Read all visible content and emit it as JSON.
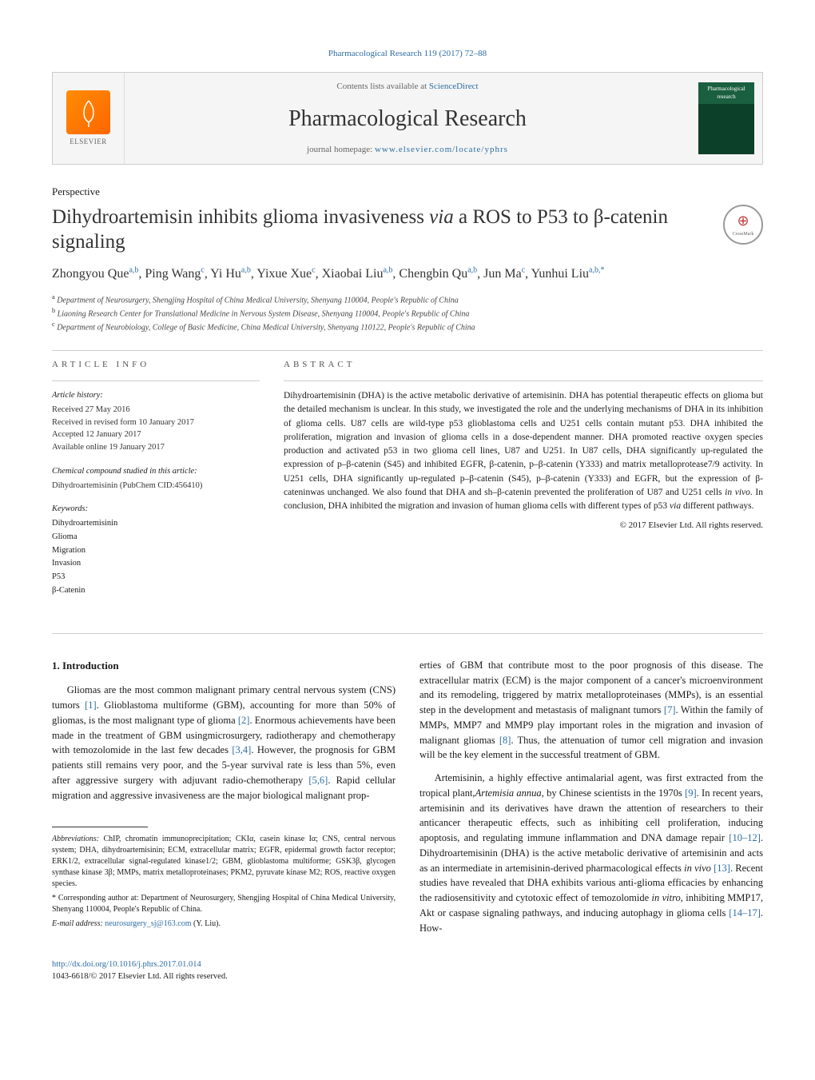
{
  "running_header": "Pharmacological Research 119 (2017) 72–88",
  "header": {
    "contents_prefix": "Contents lists available at ",
    "contents_link": "ScienceDirect",
    "journal_name": "Pharmacological Research",
    "homepage_prefix": "journal homepage: ",
    "homepage_url": "www.elsevier.com/locate/yphrs",
    "publisher_logo_label": "ELSEVIER",
    "cover_label": "Pharmacological research"
  },
  "article_type": "Perspective",
  "title_parts": {
    "p1": "Dihydroartemisin inhibits glioma invasiveness ",
    "via": "via",
    "p2": " a ROS to P53 to β-catenin signaling"
  },
  "crossmark": "CrossMark",
  "authors_html": "Zhongyou Que<sup>a,b</sup>, Ping Wang<sup>c</sup>, Yi Hu<sup>a,b</sup>, Yixue Xue<sup>c</sup>, Xiaobai Liu<sup>a,b</sup>, Chengbin Qu<sup>a,b</sup>, Jun Ma<sup>c</sup>, Yunhui Liu<sup>a,b,*</sup>",
  "affiliations": [
    {
      "marker": "a",
      "text": "Department of Neurosurgery, Shengjing Hospital of China Medical University, Shenyang 110004, People's Republic of China"
    },
    {
      "marker": "b",
      "text": "Liaoning Research Center for Translational Medicine in Nervous System Disease, Shenyang 110004, People's Republic of China"
    },
    {
      "marker": "c",
      "text": "Department of Neurobiology, College of Basic Medicine, China Medical University, Shenyang 110122, People's Republic of China"
    }
  ],
  "info": {
    "article_info_heading": "ARTICLE INFO",
    "history_label": "Article history:",
    "history": [
      "Received 27 May 2016",
      "Received in revised form 10 January 2017",
      "Accepted 12 January 2017",
      "Available online 19 January 2017"
    ],
    "compound_label": "Chemical compound studied in this article:",
    "compound": "Dihydroartemisinin (PubChem CID:456410)",
    "keywords_label": "Keywords:",
    "keywords": [
      "Dihydroartemisinin",
      "Glioma",
      "Migration",
      "Invasion",
      "P53",
      "β-Catenin"
    ]
  },
  "abstract": {
    "heading": "ABSTRACT",
    "text": "Dihydroartemisinin (DHA) is the active metabolic derivative of artemisinin. DHA has potential therapeutic effects on glioma but the detailed mechanism is unclear. In this study, we investigated the role and the underlying mechanisms of DHA in its inhibition of glioma cells. U87 cells are wild-type p53 glioblastoma cells and U251 cells contain mutant p53. DHA inhibited the proliferation, migration and invasion of glioma cells in a dose-dependent manner. DHA promoted reactive oxygen species production and activated p53 in two glioma cell lines, U87 and U251. In U87 cells, DHA significantly up-regulated the expression of p–β-catenin (S45) and inhibited EGFR, β-catenin, p–β-catenin (Y333) and matrix metalloprotease7/9 activity. In U251 cells, DHA significantly up-regulated p–β-catenin (S45), p–β-catenin (Y333) and EGFR, but the expression of β-cateninwas unchanged. We also found that DHA and sh–β-catenin prevented the proliferation of U87 and U251 cells in vivo. In conclusion, DHA inhibited the migration and invasion of human glioma cells with different types of p53 via different pathways.",
    "copyright": "© 2017 Elsevier Ltd. All rights reserved.",
    "italic_phrases": [
      "in vivo",
      "via"
    ]
  },
  "section_1_heading": "1. Introduction",
  "body": {
    "p1_before": "Gliomas are the most common malignant primary central nervous system (CNS) tumors ",
    "r1": "[1]",
    "p1_mid1": ". Glioblastoma multiforme (GBM), accounting for more than 50% of gliomas, is the most malignant type of glioma ",
    "r2": "[2]",
    "p1_mid2": ". Enormous achievements have been made in the treatment of GBM usingmicrosurgery, radiotherapy and chemotherapy with temozolomide in the last few decades ",
    "r3": "[3,4]",
    "p1_mid3": ". However, the prognosis for GBM patients still remains very poor, and the 5-year survival rate is less than 5%, even after aggressive surgery with adjuvant radio-chemotherapy ",
    "r4": "[5,6]",
    "p1_after": ". Rapid cellular migration and aggressive invasiveness are the major biological malignant prop",
    "p2_before": "erties of GBM that contribute most to the poor prognosis of this disease. The extracellular matrix (ECM) is the major component of a cancer's microenvironment and its remodeling, triggered by matrix metalloproteinases (MMPs), is an essential step in the development and metastasis of malignant tumors ",
    "r7": "[7]",
    "p2_mid": ". Within the family of MMPs, MMP7 and MMP9 play important roles in the migration and invasion of malignant gliomas ",
    "r8": "[8]",
    "p2_after": ". Thus, the attenuation of tumor cell migration and invasion will be the key element in the successful treatment of GBM.",
    "p3_before": "Artemisinin, a highly effective antimalarial agent, was first extracted from the tropical plant,",
    "p3_italic": "Artemisia annua",
    "p3_mid1": ", by Chinese scientists in the 1970s ",
    "r9": "[9]",
    "p3_mid2": ". In recent years, artemisinin and its derivatives have drawn the attention of researchers to their anticancer therapeutic effects, such as inhibiting cell proliferation, inducing apoptosis, and regulating immune inflammation and DNA damage repair ",
    "r10": "[10–12]",
    "p3_mid3": ". Dihydroartemisinin (DHA) is the active metabolic derivative of artemisinin and acts as an intermediate in artemisinin-derived pharmacological effects ",
    "p3_invivo": "in vivo",
    "r13": " [13]",
    "p3_mid4": ". Recent studies have revealed that DHA exhibits various anti-glioma efficacies by enhancing the radiosensitivity and cytotoxic effect of temozolomide ",
    "p3_invitro": "in vitro",
    "p3_mid5": ", inhibiting MMP17, Akt or caspase signaling pathways, and inducing autophagy in glioma cells ",
    "r14": "[14–17]",
    "p3_after": ". How-"
  },
  "footnotes": {
    "abbrev_label": "Abbreviations:",
    "abbrev_text": " ChIP, chromatin immunoprecipitation; CKIα, casein kinase Iα; CNS, central nervous system; DHA, dihydroartemisinin; ECM, extracellular matrix; EGFR, epidermal growth factor receptor; ERK1/2, extracellular signal-regulated kinase1/2; GBM, glioblastoma multiforme; GSK3β, glycogen synthase kinase 3β; MMPs, matrix metalloproteinases; PKM2, pyruvate kinase M2; ROS, reactive oxygen species.",
    "corr_marker": "*",
    "corr_text": " Corresponding author at: Department of Neurosurgery, Shengjing Hospital of China Medical University, Shenyang 110004, People's Republic of China.",
    "email_label": "E-mail address:",
    "email": "neurosurgery_sj@163.com",
    "email_suffix": " (Y. Liu)."
  },
  "footer": {
    "doi": "http://dx.doi.org/10.1016/j.phrs.2017.01.014",
    "issn_line": "1043-6618/© 2017 Elsevier Ltd. All rights reserved."
  },
  "colors": {
    "link": "#2e6da4",
    "text": "#1a1a1a",
    "rule": "#cccccc",
    "elsevier_orange": "#ff7a00",
    "cover_green": "#1a5f3f"
  }
}
